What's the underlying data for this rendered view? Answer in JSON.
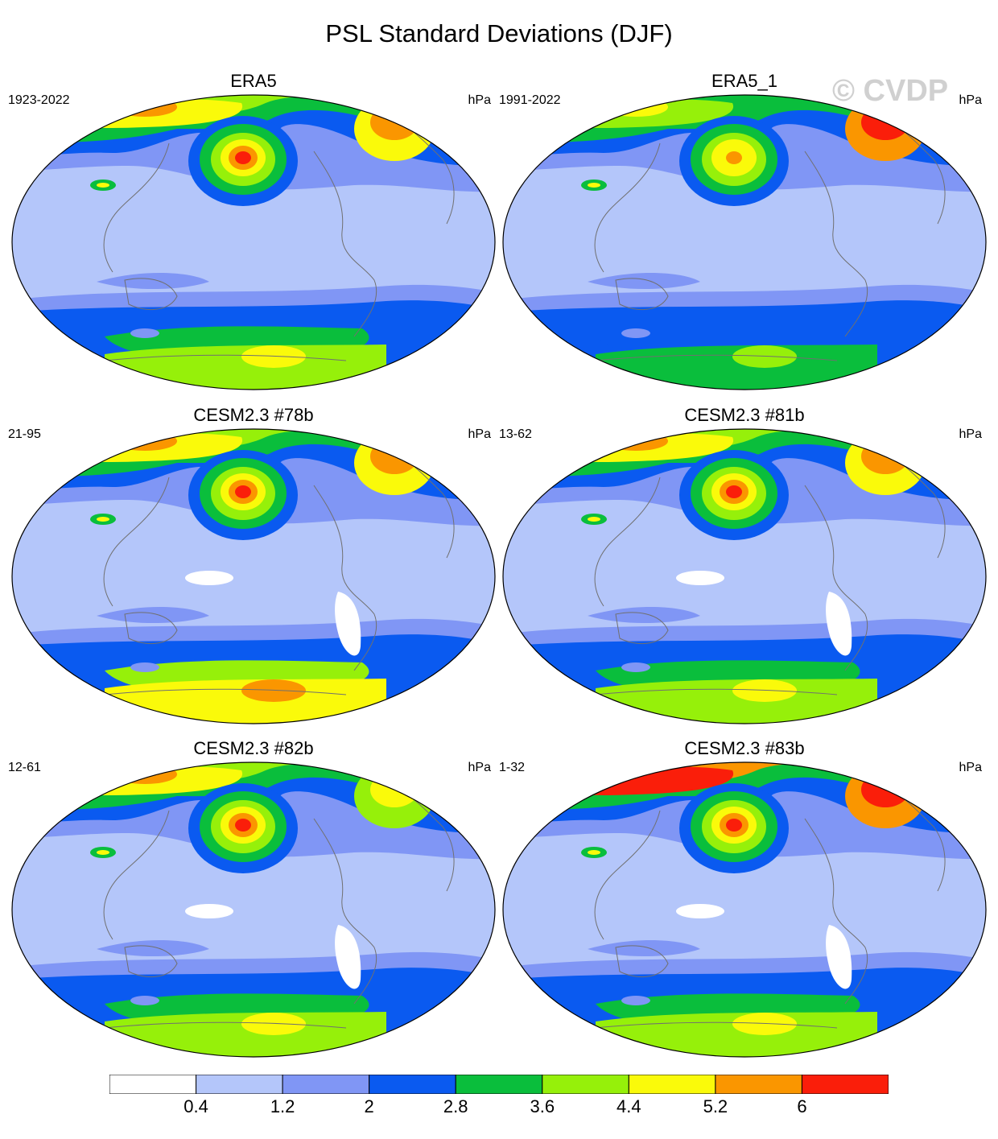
{
  "title": "PSL Standard Deviations (DJF)",
  "watermark": "© CVDP",
  "units": "hPa",
  "colors": {
    "levels": [
      "#ffffff",
      "#b4c6fa",
      "#8096f5",
      "#0a5af0",
      "#0abe3c",
      "#96f00a",
      "#fafa0a",
      "#fa9600",
      "#fa1e0a"
    ],
    "coast": "#707070"
  },
  "colorbar": {
    "labels": [
      "0.4",
      "1.2",
      "2",
      "2.8",
      "3.6",
      "4.4",
      "5.2",
      "6"
    ],
    "values": [
      0.4,
      1.2,
      2,
      2.8,
      3.6,
      4.4,
      5.2,
      6
    ]
  },
  "panels": [
    {
      "title": "ERA5",
      "period": "1923-2022",
      "nh_level": 6,
      "sh_level": 5,
      "nh_peak": 8,
      "atl_level": 7
    },
    {
      "title": "ERA5_1",
      "period": "1991-2022",
      "nh_level": 5,
      "sh_level": 4,
      "nh_peak": 7,
      "atl_level": 8
    },
    {
      "title": "CESM2.3 #78b",
      "period": "21-95",
      "nh_level": 6,
      "sh_level": 6,
      "nh_peak": 8,
      "atl_level": 7
    },
    {
      "title": "CESM2.3 #81b",
      "period": "13-62",
      "nh_level": 6,
      "sh_level": 5,
      "nh_peak": 8,
      "atl_level": 7
    },
    {
      "title": "CESM2.3 #82b",
      "period": "12-61",
      "nh_level": 6,
      "sh_level": 5,
      "nh_peak": 8,
      "atl_level": 6
    },
    {
      "title": "CESM2.3 #83b",
      "period": "1-32",
      "nh_level": 8,
      "sh_level": 5,
      "nh_peak": 8,
      "atl_level": 8
    }
  ]
}
